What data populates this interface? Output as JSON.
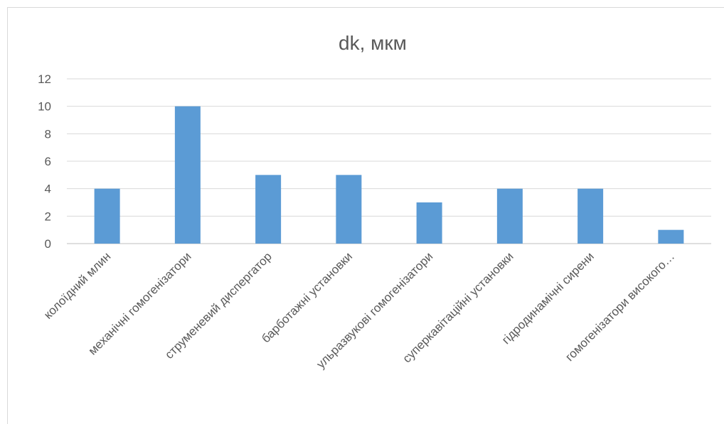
{
  "chart_data": {
    "type": "bar",
    "title": "dk, мкм",
    "categories": [
      "колоїдний млин",
      "механічні гомогенізатори",
      "струменевий диспергатор",
      "барботажні установки",
      "ульразвукові гомогенізатори",
      "суперкавітаційні установки",
      "гідродинамічні сирени",
      "гомогенізатори високого…"
    ],
    "values": [
      4,
      10,
      5,
      5,
      3,
      4,
      4,
      1
    ],
    "ylim": [
      0,
      12
    ],
    "yticks": [
      0,
      2,
      4,
      6,
      8,
      10,
      12
    ],
    "grid": true,
    "legend": "none",
    "bar_color": "#5b9bd5"
  }
}
